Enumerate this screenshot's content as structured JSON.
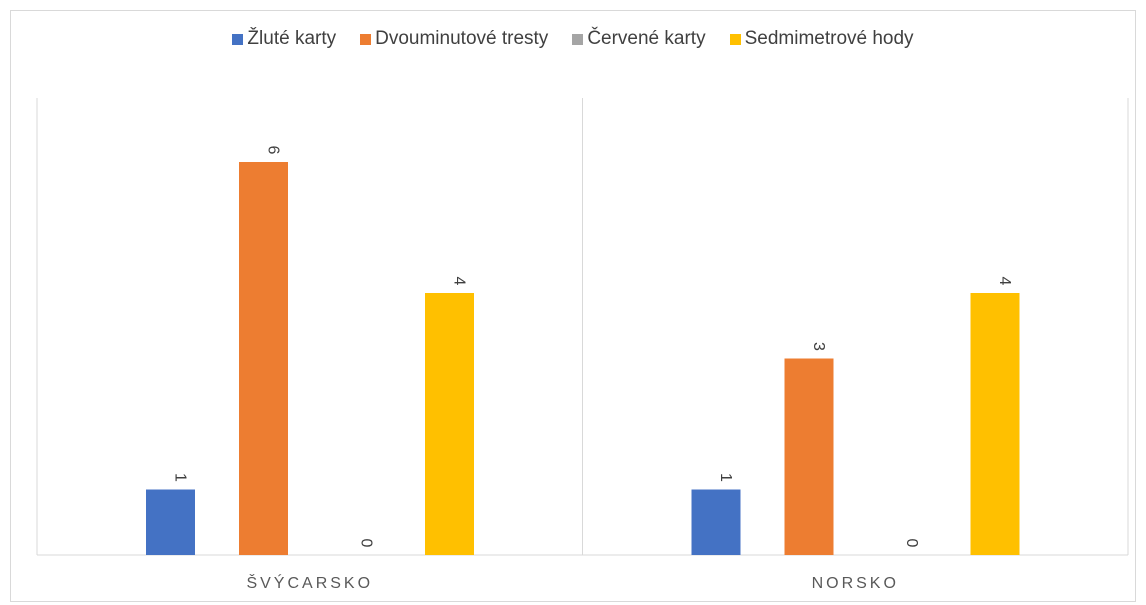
{
  "chart_data": {
    "type": "bar",
    "categories": [
      "ŠVÝCARSKO",
      "NORSKO"
    ],
    "series": [
      {
        "name": "Žluté karty",
        "values": [
          1,
          1
        ],
        "color": "#4472c4"
      },
      {
        "name": "Dvouminutové tresty",
        "values": [
          6,
          3
        ],
        "color": "#ed7d31"
      },
      {
        "name": "Červené karty",
        "values": [
          0,
          0
        ],
        "color": "#a5a5a5"
      },
      {
        "name": "Sedmimetrové hody",
        "values": [
          4,
          4
        ],
        "color": "#ffc000"
      }
    ],
    "title": "",
    "xlabel": "",
    "ylabel": "",
    "ylim": [
      0,
      7
    ],
    "legend_position": "top",
    "grid": false,
    "data_labels_rotated": true
  }
}
